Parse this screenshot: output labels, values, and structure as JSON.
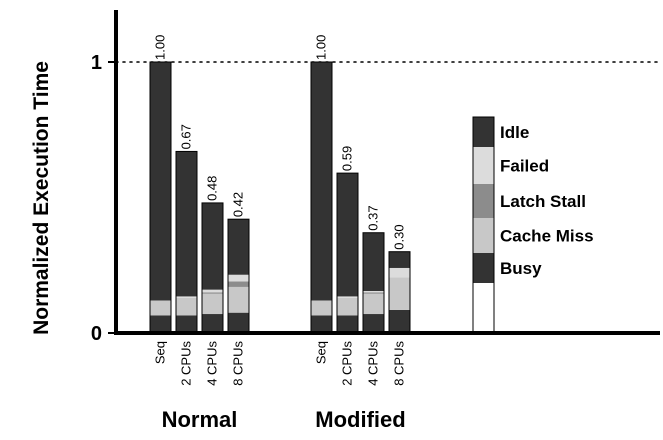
{
  "chart_data": {
    "type": "bar",
    "stacked": true,
    "ylabel": "Normalized Execution Time",
    "ylim": [
      0,
      1.2
    ],
    "yticks": [
      {
        "value": 0,
        "label": "0"
      },
      {
        "value": 1,
        "label": "1"
      }
    ],
    "reference_line": {
      "value": 1,
      "style": "dotted"
    },
    "components": [
      {
        "name": "Busy",
        "color": "#333333"
      },
      {
        "name": "Cache Miss",
        "color": "#c8c8c8"
      },
      {
        "name": "Latch Stall",
        "color": "#8c8c8c"
      },
      {
        "name": "Failed",
        "color": "#dcdcdc"
      },
      {
        "name": "Idle",
        "color": "#333333"
      }
    ],
    "legend": {
      "placement": "right",
      "order": [
        "Idle",
        "Failed",
        "Latch Stall",
        "Cache Miss",
        "Busy"
      ]
    },
    "groups": [
      {
        "name": "Normal",
        "bars": [
          {
            "category": "Seq",
            "total": 1.0,
            "label": "1.00",
            "values": {
              "Busy": 0.065,
              "Cache Miss": 0.055,
              "Latch Stall": 0.0,
              "Failed": 0.0,
              "Idle": 0.88
            }
          },
          {
            "category": "2 CPUs",
            "total": 0.67,
            "label": "0.67",
            "values": {
              "Busy": 0.065,
              "Cache Miss": 0.065,
              "Latch Stall": 0.0,
              "Failed": 0.005,
              "Idle": 0.535
            }
          },
          {
            "category": "4 CPUs",
            "total": 0.48,
            "label": "0.48",
            "values": {
              "Busy": 0.07,
              "Cache Miss": 0.075,
              "Latch Stall": 0.005,
              "Failed": 0.01,
              "Idle": 0.32
            }
          },
          {
            "category": "8 CPUs",
            "total": 0.42,
            "label": "0.42",
            "values": {
              "Busy": 0.075,
              "Cache Miss": 0.095,
              "Latch Stall": 0.02,
              "Failed": 0.025,
              "Idle": 0.205
            }
          }
        ]
      },
      {
        "name": "Modified",
        "bars": [
          {
            "category": "Seq",
            "total": 1.0,
            "label": "1.00",
            "values": {
              "Busy": 0.065,
              "Cache Miss": 0.055,
              "Latch Stall": 0.0,
              "Failed": 0.0,
              "Idle": 0.88
            }
          },
          {
            "category": "2 CPUs",
            "total": 0.59,
            "label": "0.59",
            "values": {
              "Busy": 0.065,
              "Cache Miss": 0.065,
              "Latch Stall": 0.0,
              "Failed": 0.005,
              "Idle": 0.455
            }
          },
          {
            "category": "4 CPUs",
            "total": 0.37,
            "label": "0.37",
            "values": {
              "Busy": 0.07,
              "Cache Miss": 0.075,
              "Latch Stall": 0.005,
              "Failed": 0.005,
              "Idle": 0.215
            }
          },
          {
            "category": "8 CPUs",
            "total": 0.3,
            "label": "0.30",
            "values": {
              "Busy": 0.085,
              "Cache Miss": 0.12,
              "Latch Stall": 0.0,
              "Failed": 0.035,
              "Idle": 0.06
            }
          }
        ]
      }
    ]
  }
}
